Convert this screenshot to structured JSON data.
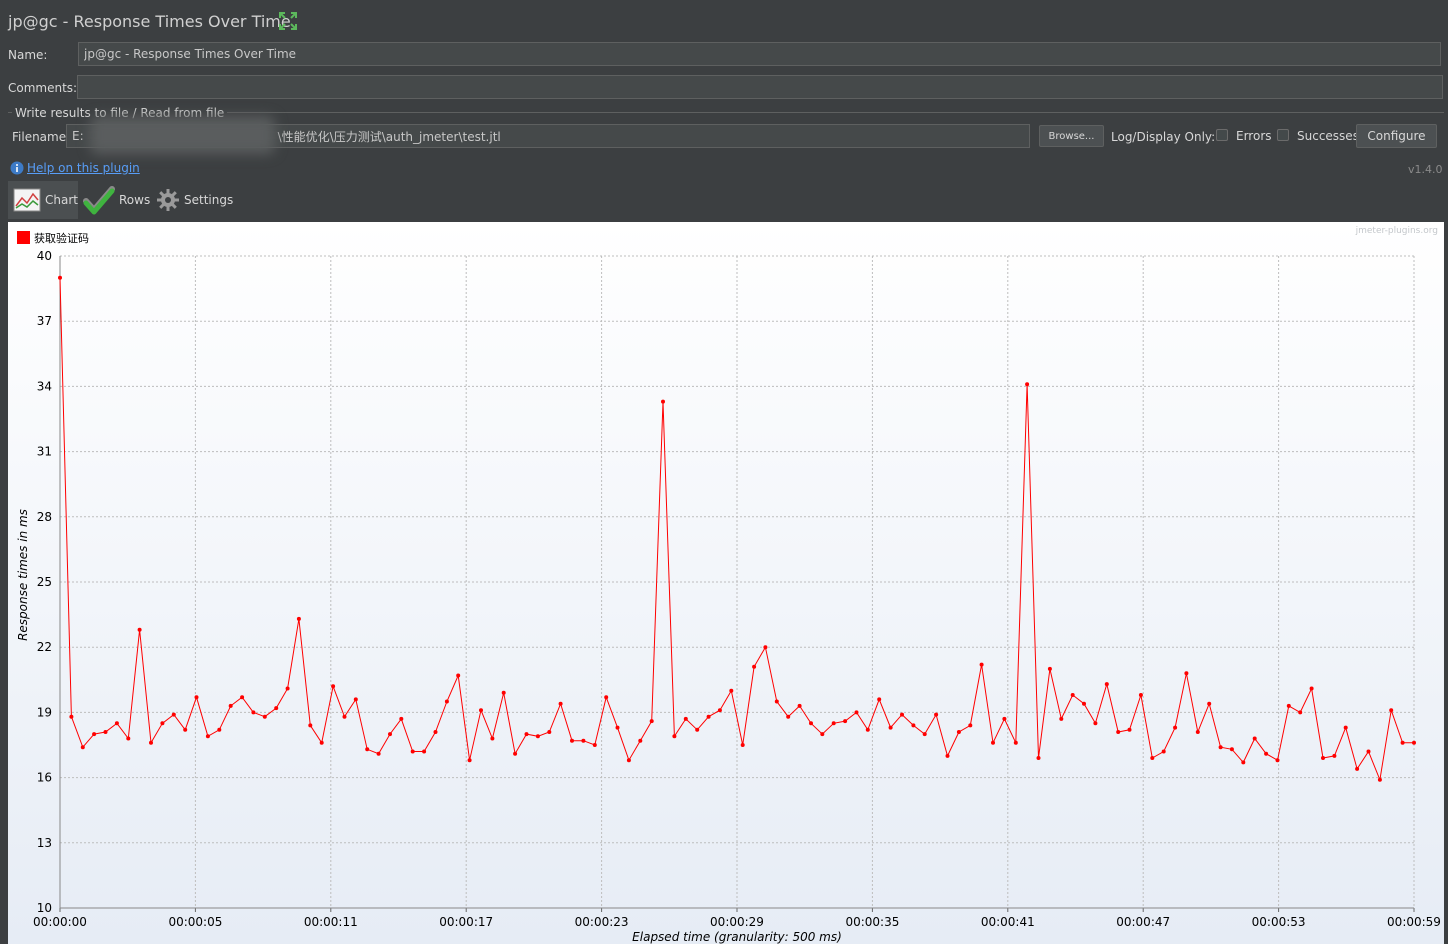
{
  "window": {
    "title": "jp@gc - Response Times Over Time"
  },
  "form": {
    "name_label": "Name:",
    "name_value": "jp@gc - Response Times Over Time",
    "comments_label": "Comments:",
    "comments_value": "",
    "group_title": "Write results to file / Read from file",
    "filename_label": "Filename",
    "filename_prefix": "E:",
    "filename_value": "\\性能优化\\压力测试\\auth_jmeter\\test.jtl",
    "browse_label": "Browse...",
    "log_display_label": "Log/Display Only:",
    "errors_label": "Errors",
    "successes_label": "Successes",
    "configure_label": "Configure"
  },
  "help": {
    "link_text": "Help on this plugin",
    "version": "v1.4.0"
  },
  "tabs": [
    {
      "label": "Chart",
      "icon": "chart-icon",
      "active": true
    },
    {
      "label": "Rows",
      "icon": "checkmark-icon",
      "active": false
    },
    {
      "label": "Settings",
      "icon": "gear-icon",
      "active": false
    }
  ],
  "colors": {
    "series": "#ff0000",
    "background": "#3c3f41",
    "link": "#589df6"
  },
  "chart_data": {
    "type": "line",
    "watermark": "jmeter-plugins.org",
    "ylabel": "Response times in ms",
    "xlabel": "Elapsed time (granularity: 500 ms)",
    "ylim": [
      10,
      40
    ],
    "yticks": [
      10,
      13,
      16,
      19,
      22,
      25,
      28,
      31,
      34,
      37,
      40
    ],
    "xlim": [
      0,
      59.5
    ],
    "xticks": [
      {
        "v": 0,
        "label": "00:00:00"
      },
      {
        "v": 5.95,
        "label": "00:00:05"
      },
      {
        "v": 11.9,
        "label": "00:00:11"
      },
      {
        "v": 17.85,
        "label": "00:00:17"
      },
      {
        "v": 23.8,
        "label": "00:00:23"
      },
      {
        "v": 29.75,
        "label": "00:00:29"
      },
      {
        "v": 35.7,
        "label": "00:00:35"
      },
      {
        "v": 41.65,
        "label": "00:00:41"
      },
      {
        "v": 47.6,
        "label": "00:00:47"
      },
      {
        "v": 53.55,
        "label": "00:00:53"
      },
      {
        "v": 59.5,
        "label": "00:00:59"
      }
    ],
    "grid": true,
    "legend_position": "top-left",
    "series": [
      {
        "name": "获取验证码",
        "color": "#ff0000",
        "x_step_seconds": 0.5,
        "values": [
          39.0,
          18.8,
          17.4,
          18.0,
          18.1,
          18.5,
          17.8,
          22.8,
          17.6,
          18.5,
          18.9,
          18.2,
          19.7,
          17.9,
          18.2,
          19.3,
          19.7,
          19.0,
          18.8,
          19.2,
          20.1,
          23.3,
          18.4,
          17.6,
          20.2,
          18.8,
          19.6,
          17.3,
          17.1,
          18.0,
          18.7,
          17.2,
          17.2,
          18.1,
          19.5,
          20.7,
          16.8,
          19.1,
          17.8,
          19.9,
          17.1,
          18.0,
          17.9,
          18.1,
          19.4,
          17.7,
          17.7,
          17.5,
          19.7,
          18.3,
          16.8,
          17.7,
          18.6,
          33.3,
          17.9,
          18.7,
          18.2,
          18.8,
          19.1,
          20.0,
          17.5,
          21.1,
          22.0,
          19.5,
          18.8,
          19.3,
          18.5,
          18.0,
          18.5,
          18.6,
          19.0,
          18.2,
          19.6,
          18.3,
          18.9,
          18.4,
          18.0,
          18.9,
          17.0,
          18.1,
          18.4,
          21.2,
          17.6,
          18.7,
          17.6,
          34.1,
          16.9,
          21.0,
          18.7,
          19.8,
          19.4,
          18.5,
          20.3,
          18.1,
          18.2,
          19.8,
          16.9,
          17.2,
          18.3,
          20.8,
          18.1,
          19.4,
          17.4,
          17.3,
          16.7,
          17.8,
          17.1,
          16.8,
          19.3,
          19.0,
          20.1,
          16.9,
          17.0,
          18.3,
          16.4,
          17.2,
          15.9,
          19.1,
          17.6,
          17.6
        ]
      }
    ]
  }
}
